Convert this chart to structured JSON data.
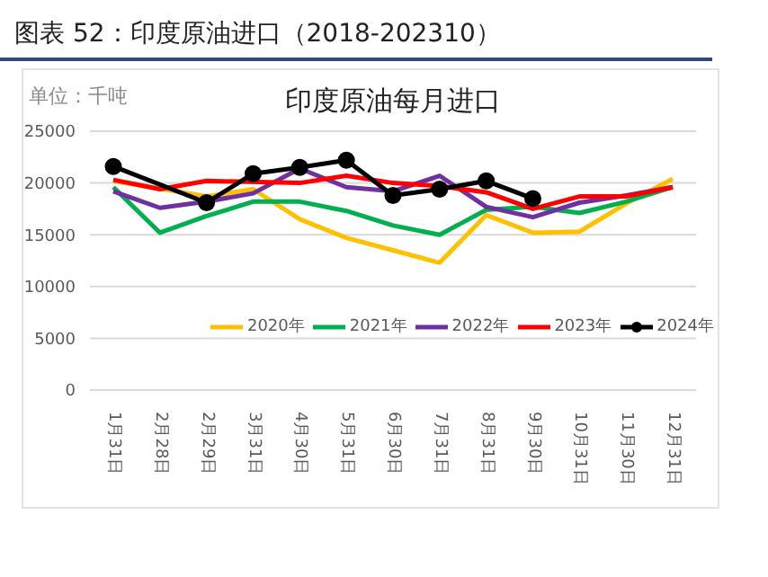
{
  "chart_data": {
    "type": "line",
    "title": "印度原油每月进口",
    "subtitle": "图表 52：印度原油进口（2018-202310）",
    "ylabel": "单位：千吨",
    "categories": [
      "1月31日",
      "2月28日",
      "2月29日",
      "3月31日",
      "4月30日",
      "5月31日",
      "6月30日",
      "7月31日",
      "8月31日",
      "9月30日",
      "10月31日",
      "11月30日",
      "12月31日"
    ],
    "series": [
      {
        "name": "2020年",
        "color": "#ffc000",
        "marker": "none",
        "values": [
          20200,
          null,
          18700,
          19400,
          16500,
          14700,
          13500,
          12300,
          16900,
          15200,
          15300,
          18000,
          20400
        ]
      },
      {
        "name": "2021年",
        "color": "#00b050",
        "marker": "none",
        "values": [
          19600,
          15200,
          16800,
          18200,
          18200,
          17300,
          15900,
          15000,
          17400,
          17700,
          17100,
          18200,
          19600
        ]
      },
      {
        "name": "2022年",
        "color": "#7030a0",
        "marker": "none",
        "values": [
          19200,
          17600,
          18200,
          19000,
          21400,
          19600,
          19200,
          20700,
          17700,
          16700,
          18100,
          18800,
          19600
        ]
      },
      {
        "name": "2023年",
        "color": "#ff0000",
        "marker": "none",
        "values": [
          20300,
          19400,
          20200,
          null,
          20000,
          20700,
          20000,
          19700,
          19100,
          17500,
          18700,
          18700,
          19600
        ]
      },
      {
        "name": "2024年",
        "color": "#000000",
        "marker": "circle",
        "values": [
          21600,
          null,
          18100,
          20900,
          21500,
          22200,
          18800,
          19400,
          20200,
          18500,
          null,
          null,
          null
        ]
      }
    ],
    "ylim": [
      0,
      25000
    ],
    "yticks": [
      0,
      5000,
      10000,
      15000,
      20000,
      25000
    ],
    "grid": "y",
    "legend": "bottom right"
  }
}
